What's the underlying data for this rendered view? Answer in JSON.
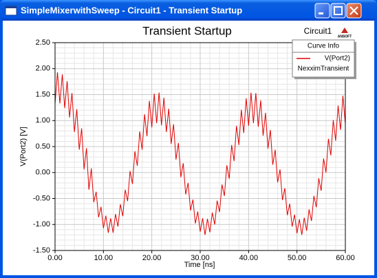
{
  "window": {
    "title": "SimpleMixerwithSweep - Circuit1 - Transient Startup"
  },
  "chart_data": {
    "type": "line",
    "title": "Transient Startup",
    "annotation": "Circuit1",
    "logo": "ANSOFT",
    "x_label": "Time [ns]",
    "y_label": "V(Port2) [V]",
    "legend_title": "Curve Info",
    "legend_note": "NexximTransient",
    "legend_position": "upper right",
    "grid": true,
    "minor_grid": true,
    "xlim": [
      0,
      60
    ],
    "ylim": [
      -1.5,
      2.5
    ],
    "xticks": [
      {
        "value": 0,
        "label": "0.00"
      },
      {
        "value": 10,
        "label": "10.00"
      },
      {
        "value": 20,
        "label": "20.00"
      },
      {
        "value": 30,
        "label": "30.00"
      },
      {
        "value": 40,
        "label": "40.00"
      },
      {
        "value": 50,
        "label": "50.00"
      },
      {
        "value": 60,
        "label": "60.00"
      }
    ],
    "yticks": [
      {
        "value": -1.5,
        "label": "-1.50"
      },
      {
        "value": -1,
        "label": "-1.00"
      },
      {
        "value": -0.5,
        "label": "-0.50"
      },
      {
        "value": 0,
        "label": "0.00"
      },
      {
        "value": 0.5,
        "label": "0.50"
      },
      {
        "value": 1,
        "label": "1.00"
      },
      {
        "value": 1.5,
        "label": "1.50"
      },
      {
        "value": 2,
        "label": "2.00"
      },
      {
        "value": 2.5,
        "label": "2.50"
      }
    ],
    "x": [
      0,
      0.5,
      1,
      1.5,
      2,
      2.5,
      3,
      3.5,
      4,
      4.5,
      5,
      5.5,
      6,
      6.5,
      7,
      7.5,
      8,
      8.5,
      9,
      9.5,
      10,
      10.5,
      11,
      11.5,
      12,
      12.5,
      13,
      13.5,
      14,
      14.5,
      15,
      15.5,
      16,
      16.5,
      17,
      17.5,
      18,
      18.5,
      19,
      19.5,
      20,
      20.5,
      21,
      21.5,
      22,
      22.5,
      23,
      23.5,
      24,
      24.5,
      25,
      25.5,
      26,
      26.5,
      27,
      27.5,
      28,
      28.5,
      29,
      29.5,
      30,
      30.5,
      31,
      31.5,
      32,
      32.5,
      33,
      33.5,
      34,
      34.5,
      35,
      35.5,
      36,
      36.5,
      37,
      37.5,
      38,
      38.5,
      39,
      39.5,
      40,
      40.5,
      41,
      41.5,
      42,
      42.5,
      43,
      43.5,
      44,
      44.5,
      45,
      45.5,
      46,
      46.5,
      47,
      47.5,
      48,
      48.5,
      49,
      49.5,
      50,
      50.5,
      51,
      51.5,
      52,
      52.5,
      53,
      53.5,
      54,
      54.5,
      55,
      55.5,
      56,
      56.5,
      57,
      57.5,
      58,
      58.5,
      59,
      59.5,
      60
    ],
    "series": [
      {
        "name": "V(Port2)",
        "color": "#e00000",
        "values": [
          1.32,
          1.93,
          1.33,
          1.89,
          1.24,
          1.76,
          1.06,
          1.53,
          0.78,
          1.22,
          0.44,
          0.85,
          0.06,
          0.47,
          -0.33,
          0.08,
          -0.57,
          -0.37,
          -0.86,
          -0.66,
          -1.07,
          -0.83,
          -1.16,
          -0.88,
          -1.16,
          -0.8,
          -1.04,
          -0.61,
          -0.84,
          -0.33,
          -0.55,
          0.03,
          -0.22,
          0.41,
          0.13,
          0.79,
          0.44,
          1.12,
          0.7,
          1.38,
          0.87,
          1.52,
          0.95,
          1.54,
          0.91,
          1.44,
          0.78,
          1.23,
          0.55,
          0.93,
          0.25,
          0.57,
          -0.09,
          0.18,
          -0.42,
          -0.2,
          -0.73,
          -0.52,
          -0.98,
          -0.75,
          -1.14,
          -0.88,
          -1.2,
          -0.89,
          -1.15,
          -0.77,
          -1.0,
          -0.54,
          -0.76,
          -0.23,
          -0.45,
          0.14,
          -0.12,
          0.53,
          0.22,
          0.9,
          0.53,
          1.21,
          0.76,
          1.43,
          0.9,
          1.54,
          0.95,
          1.53,
          0.88,
          1.39,
          0.71,
          1.15,
          0.46,
          0.82,
          0.15,
          0.44,
          -0.19,
          0.06,
          -0.53,
          -0.3,
          -0.82,
          -0.6,
          -1.04,
          -0.81,
          -1.17,
          -0.9,
          -1.2,
          -0.87,
          -1.12,
          -0.71,
          -0.93,
          -0.45,
          -0.67,
          -0.11,
          -0.35,
          0.27,
          0.0,
          0.65,
          0.33,
          1.01,
          0.61,
          1.29,
          0.82,
          1.48,
          0.93
        ]
      }
    ]
  }
}
